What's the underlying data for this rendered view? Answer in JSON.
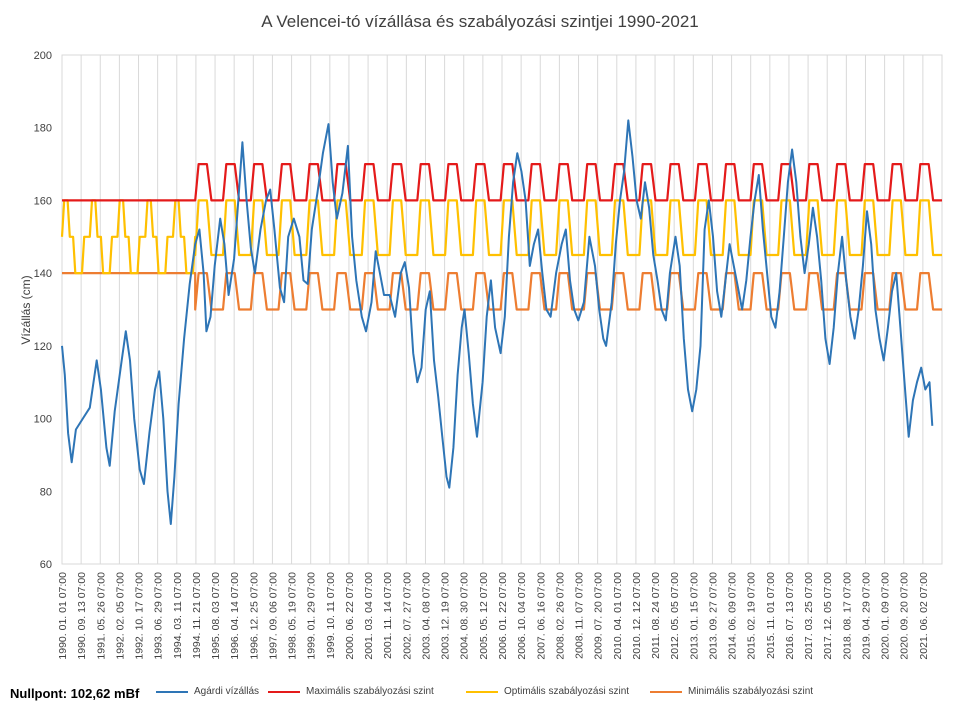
{
  "chart_data": {
    "type": "line",
    "title": "A Velencei-tó vízállása és szabályozási szintjei 1990-2021",
    "ylabel": "Vízállás (cm)",
    "xlabel": "",
    "ylim": [
      60,
      200
    ],
    "yticks": [
      60,
      80,
      100,
      120,
      140,
      160,
      180,
      200
    ],
    "grid": "vertical",
    "legend": "bottom",
    "x_tick_labels": [
      "1990. 01. 01 07:00",
      "1990. 09. 13 07:00",
      "1991. 05. 26 07:00",
      "1992. 02. 05 07:00",
      "1992. 10. 17 07:00",
      "1993. 06. 29 07:00",
      "1994. 03. 11 07:00",
      "1994. 11. 21 07:00",
      "1995. 08. 03 07:00",
      "1996. 04. 14 07:00",
      "1996. 12. 25 07:00",
      "1997. 09. 06 07:00",
      "1998. 05. 19 07:00",
      "1999. 01. 29 07:00",
      "1999. 10. 11 07:00",
      "2000. 06. 22 07:00",
      "2001. 03. 04 07:00",
      "2001. 11. 14 07:00",
      "2002. 07. 27 07:00",
      "2003. 04. 08 07:00",
      "2003. 12. 19 07:00",
      "2004. 08. 30 07:00",
      "2005. 05. 12 07:00",
      "2006. 01. 22 07:00",
      "2006. 10. 04 07:00",
      "2007. 06. 16 07:00",
      "2008. 02. 26 07:00",
      "2008. 11. 07 07:00",
      "2009. 07. 20 07:00",
      "2010. 04. 01 07:00",
      "2010. 12. 12 07:00",
      "2011. 08. 24 07:00",
      "2012. 05. 05 07:00",
      "2013. 01. 15 07:00",
      "2013. 09. 27 07:00",
      "2014. 06. 09 07:00",
      "2015. 02. 19 07:00",
      "2015. 11. 01 07:00",
      "2016. 07. 13 07:00",
      "2017. 03. 25 07:00",
      "2017. 12. 05 07:00",
      "2018. 08. 17 07:00",
      "2019. 04. 29 07:00",
      "2020. 01. 09 07:00",
      "2020. 09. 20 07:00",
      "2021. 06. 02 07:00"
    ],
    "series": [
      {
        "name": "Agárdi vízállás",
        "color": "#2e75b6",
        "points": [
          [
            1990.0,
            120
          ],
          [
            1990.1,
            112
          ],
          [
            1990.22,
            96
          ],
          [
            1990.35,
            88
          ],
          [
            1990.5,
            97
          ],
          [
            1990.75,
            100
          ],
          [
            1991.0,
            103
          ],
          [
            1991.25,
            116
          ],
          [
            1991.4,
            108
          ],
          [
            1991.6,
            92
          ],
          [
            1991.72,
            87
          ],
          [
            1991.9,
            102
          ],
          [
            1992.15,
            116
          ],
          [
            1992.3,
            124
          ],
          [
            1992.45,
            116
          ],
          [
            1992.6,
            100
          ],
          [
            1992.8,
            86
          ],
          [
            1992.95,
            82
          ],
          [
            1993.15,
            96
          ],
          [
            1993.35,
            108
          ],
          [
            1993.5,
            113
          ],
          [
            1993.65,
            100
          ],
          [
            1993.8,
            80
          ],
          [
            1993.92,
            71
          ],
          [
            1994.05,
            84
          ],
          [
            1994.2,
            104
          ],
          [
            1994.4,
            122
          ],
          [
            1994.6,
            137
          ],
          [
            1994.8,
            148
          ],
          [
            1994.95,
            152
          ],
          [
            1995.1,
            140
          ],
          [
            1995.2,
            124
          ],
          [
            1995.35,
            128
          ],
          [
            1995.5,
            142
          ],
          [
            1995.7,
            155
          ],
          [
            1995.85,
            148
          ],
          [
            1996.0,
            134
          ],
          [
            1996.2,
            144
          ],
          [
            1996.35,
            160
          ],
          [
            1996.5,
            176
          ],
          [
            1996.65,
            160
          ],
          [
            1996.8,
            147
          ],
          [
            1996.95,
            140
          ],
          [
            1997.15,
            152
          ],
          [
            1997.35,
            160
          ],
          [
            1997.5,
            163
          ],
          [
            1997.65,
            152
          ],
          [
            1997.85,
            136
          ],
          [
            1998.0,
            132
          ],
          [
            1998.15,
            150
          ],
          [
            1998.35,
            155
          ],
          [
            1998.55,
            150
          ],
          [
            1998.7,
            138
          ],
          [
            1998.85,
            137
          ],
          [
            1999.0,
            152
          ],
          [
            1999.2,
            162
          ],
          [
            1999.4,
            173
          ],
          [
            1999.6,
            181
          ],
          [
            1999.75,
            165
          ],
          [
            1999.9,
            155
          ],
          [
            2000.1,
            162
          ],
          [
            2000.3,
            175
          ],
          [
            2000.45,
            150
          ],
          [
            2000.6,
            138
          ],
          [
            2000.8,
            128
          ],
          [
            2000.95,
            124
          ],
          [
            2001.15,
            132
          ],
          [
            2001.3,
            146
          ],
          [
            2001.45,
            140
          ],
          [
            2001.6,
            134
          ],
          [
            2001.8,
            134
          ],
          [
            2002.0,
            128
          ],
          [
            2002.2,
            140
          ],
          [
            2002.35,
            143
          ],
          [
            2002.5,
            136
          ],
          [
            2002.65,
            118
          ],
          [
            2002.8,
            110
          ],
          [
            2002.95,
            114
          ],
          [
            2003.1,
            130
          ],
          [
            2003.25,
            135
          ],
          [
            2003.4,
            116
          ],
          [
            2003.55,
            106
          ],
          [
            2003.7,
            95
          ],
          [
            2003.85,
            84
          ],
          [
            2003.95,
            81
          ],
          [
            2004.1,
            92
          ],
          [
            2004.25,
            112
          ],
          [
            2004.4,
            125
          ],
          [
            2004.5,
            130
          ],
          [
            2004.65,
            118
          ],
          [
            2004.8,
            104
          ],
          [
            2004.95,
            95
          ],
          [
            2005.15,
            110
          ],
          [
            2005.3,
            128
          ],
          [
            2005.45,
            138
          ],
          [
            2005.6,
            125
          ],
          [
            2005.8,
            118
          ],
          [
            2005.95,
            128
          ],
          [
            2006.1,
            150
          ],
          [
            2006.25,
            165
          ],
          [
            2006.4,
            173
          ],
          [
            2006.55,
            168
          ],
          [
            2006.7,
            160
          ],
          [
            2006.85,
            142
          ],
          [
            2007.0,
            148
          ],
          [
            2007.15,
            152
          ],
          [
            2007.3,
            140
          ],
          [
            2007.45,
            130
          ],
          [
            2007.6,
            128
          ],
          [
            2007.8,
            140
          ],
          [
            2008.0,
            148
          ],
          [
            2008.15,
            152
          ],
          [
            2008.3,
            138
          ],
          [
            2008.45,
            130
          ],
          [
            2008.6,
            127
          ],
          [
            2008.8,
            132
          ],
          [
            2009.0,
            150
          ],
          [
            2009.2,
            142
          ],
          [
            2009.35,
            130
          ],
          [
            2009.5,
            122
          ],
          [
            2009.6,
            120
          ],
          [
            2009.8,
            132
          ],
          [
            2009.95,
            148
          ],
          [
            2010.1,
            160
          ],
          [
            2010.25,
            168
          ],
          [
            2010.4,
            182
          ],
          [
            2010.55,
            172
          ],
          [
            2010.7,
            160
          ],
          [
            2010.85,
            155
          ],
          [
            2011.0,
            165
          ],
          [
            2011.15,
            158
          ],
          [
            2011.3,
            145
          ],
          [
            2011.45,
            138
          ],
          [
            2011.6,
            130
          ],
          [
            2011.75,
            127
          ],
          [
            2011.9,
            140
          ],
          [
            2012.1,
            150
          ],
          [
            2012.25,
            142
          ],
          [
            2012.4,
            122
          ],
          [
            2012.55,
            108
          ],
          [
            2012.7,
            102
          ],
          [
            2012.85,
            108
          ],
          [
            2013.0,
            120
          ],
          [
            2013.15,
            152
          ],
          [
            2013.3,
            160
          ],
          [
            2013.45,
            150
          ],
          [
            2013.6,
            135
          ],
          [
            2013.75,
            128
          ],
          [
            2013.9,
            138
          ],
          [
            2014.05,
            148
          ],
          [
            2014.2,
            142
          ],
          [
            2014.35,
            136
          ],
          [
            2014.5,
            130
          ],
          [
            2014.65,
            138
          ],
          [
            2014.8,
            150
          ],
          [
            2014.95,
            160
          ],
          [
            2015.1,
            167
          ],
          [
            2015.25,
            152
          ],
          [
            2015.4,
            140
          ],
          [
            2015.55,
            128
          ],
          [
            2015.7,
            125
          ],
          [
            2015.85,
            135
          ],
          [
            2016.0,
            150
          ],
          [
            2016.15,
            165
          ],
          [
            2016.3,
            174
          ],
          [
            2016.45,
            165
          ],
          [
            2016.6,
            150
          ],
          [
            2016.75,
            140
          ],
          [
            2016.9,
            148
          ],
          [
            2017.05,
            158
          ],
          [
            2017.2,
            150
          ],
          [
            2017.35,
            138
          ],
          [
            2017.5,
            122
          ],
          [
            2017.65,
            115
          ],
          [
            2017.8,
            125
          ],
          [
            2017.95,
            140
          ],
          [
            2018.1,
            150
          ],
          [
            2018.25,
            138
          ],
          [
            2018.4,
            128
          ],
          [
            2018.55,
            122
          ],
          [
            2018.7,
            130
          ],
          [
            2018.85,
            142
          ],
          [
            2019.0,
            157
          ],
          [
            2019.15,
            148
          ],
          [
            2019.3,
            130
          ],
          [
            2019.45,
            122
          ],
          [
            2019.6,
            116
          ],
          [
            2019.75,
            125
          ],
          [
            2019.9,
            135
          ],
          [
            2020.05,
            140
          ],
          [
            2020.2,
            125
          ],
          [
            2020.35,
            110
          ],
          [
            2020.5,
            95
          ],
          [
            2020.65,
            105
          ],
          [
            2020.8,
            110
          ],
          [
            2020.95,
            114
          ],
          [
            2021.1,
            108
          ],
          [
            2021.25,
            110
          ],
          [
            2021.35,
            98
          ]
        ]
      },
      {
        "name": "Maximális szabályozási szint",
        "color": "#e41a1a",
        "before_value": 160,
        "regime_start": 1994.8,
        "pattern": {
          "low": 160,
          "high": 170,
          "rise_start": 0.0,
          "high_start": 0.12,
          "high_end": 0.42,
          "low_end": 0.58
        }
      },
      {
        "name": "Optimális szabályozási szint",
        "color": "#ffc000",
        "before_pattern": {
          "low": 140,
          "mid": 150,
          "high": 160,
          "period": 1.0
        },
        "regime_start": 1994.8,
        "pattern": {
          "low": 145,
          "high": 160,
          "rise_start": 0.0,
          "high_start": 0.12,
          "high_end": 0.42,
          "low_end": 0.58
        }
      },
      {
        "name": "Minimális szabályozási szint",
        "color": "#ed7d31",
        "before_value": 140,
        "regime_start": 1994.8,
        "pattern": {
          "low": 130,
          "high": 140,
          "rise_start": 0.0,
          "high_start": 0.12,
          "high_end": 0.42,
          "low_end": 0.58
        }
      }
    ],
    "xlim": [
      1990.0,
      2021.7
    ]
  },
  "footer": {
    "nullpont": "Nullpont: 102,62 mBf"
  }
}
